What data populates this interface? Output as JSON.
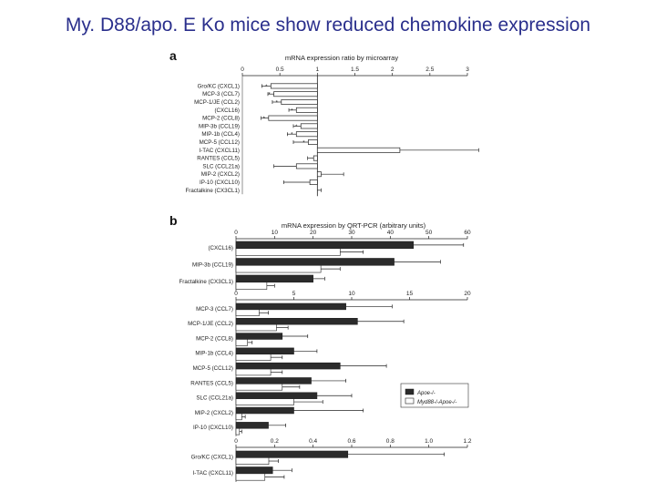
{
  "slide": {
    "title": "My. D88/apo. E Ko mice show reduced chemokine expression"
  },
  "colors": {
    "title": "#2a2f8c",
    "filled_bar": "#2b2b2b",
    "open_bar": "#ffffff",
    "axis": "#222222"
  },
  "chart_data": [
    {
      "panel": "a",
      "type": "bar",
      "orientation": "horizontal",
      "title": "mRNA expression ratio by microarray",
      "ticks": [
        "0",
        "0.5",
        "1",
        "1.5",
        "2",
        "2.5",
        "3"
      ],
      "xlim": [
        0,
        3
      ],
      "reference_line": 1,
      "categories": [
        "Gro/KC (CXCL1)",
        "MCP-3 (CCL7)",
        "MCP-1/JE (CCL2)",
        "(CXCL16)",
        "MCP-2 (CCL8)",
        "MIP-3b (CCL19)",
        "MIP-1b (CCL4)",
        "MCP-5 (CCL12)",
        "I-TAC (CXCL11)",
        "RANTES (CCL5)",
        "SLC (CCL21a)",
        "MIP-2 (CXCL2)",
        "IP-10 (CXCL10)",
        "Fractalkine (CX3CL1)"
      ],
      "series": [
        {
          "values": [
            0.38,
            0.42,
            0.52,
            0.72,
            0.35,
            0.78,
            0.72,
            0.88,
            2.1,
            0.95,
            0.72,
            1.05,
            0.9,
            1.0
          ],
          "error": [
            0.12,
            0.08,
            0.12,
            0.1,
            0.1,
            0.1,
            0.12,
            0.2,
            1.05,
            0.08,
            0.3,
            0.3,
            0.35,
            0.05
          ]
        }
      ],
      "annotations": [
        "*",
        "*",
        "*",
        "*",
        "*",
        "*",
        "*",
        "*"
      ]
    },
    {
      "panel": "b",
      "type": "bar",
      "orientation": "horizontal",
      "title": "mRNA expression by QRT-PCR (arbitrary units)",
      "subpanels": [
        {
          "ticks": [
            "0",
            "10",
            "20",
            "30",
            "40",
            "50",
            "60"
          ],
          "xlim": [
            0,
            60
          ],
          "categories": [
            "(CXCL16)",
            "MIP-3b (CCL19)",
            "Fractalkine (CX3CL1)"
          ],
          "series": [
            {
              "name": "Apoe-/-",
              "values": [
                46,
                41,
                20
              ],
              "error": [
                13,
                12,
                3
              ]
            },
            {
              "name": "Myd88-/-Apoe-/-",
              "values": [
                27,
                22,
                8
              ],
              "error": [
                6,
                5,
                2
              ]
            }
          ]
        },
        {
          "ticks": [
            "0",
            "5",
            "10",
            "15",
            "20"
          ],
          "xlim": [
            0,
            20
          ],
          "categories": [
            "MCP-3 (CCL7)",
            "MCP-1/JE (CCL2)",
            "MCP-2 (CCL8)",
            "MIP-1b (CCL4)",
            "MCP-5 (CCL12)",
            "RANTES (CCL5)",
            "SLC (CCL21a)",
            "MIP-2 (CXCL2)",
            "IP-10 (CXCL10)"
          ],
          "series": [
            {
              "name": "Apoe-/-",
              "values": [
                9.5,
                10.5,
                4,
                5,
                9,
                6.5,
                7,
                5,
                2.8
              ],
              "error": [
                4,
                4,
                2.2,
                2,
                4,
                3,
                3,
                6,
                1.5
              ]
            },
            {
              "name": "Myd88-/-Apoe-/-",
              "values": [
                2,
                3.5,
                1,
                3,
                3,
                4,
                5,
                0.5,
                0.3
              ],
              "error": [
                0.8,
                1,
                0.4,
                1,
                1,
                1.5,
                2.5,
                0.3,
                0.2
              ]
            }
          ]
        },
        {
          "ticks": [
            "0",
            "0.2",
            "0.4",
            "0.6",
            "0.8",
            "1.0",
            "1.2"
          ],
          "xlim": [
            0,
            1.2
          ],
          "categories": [
            "Gro/KC (CXCL1)",
            "I-TAC (CXCL11)"
          ],
          "series": [
            {
              "name": "Apoe-/-",
              "values": [
                0.58,
                0.19
              ],
              "error": [
                0.5,
                0.1
              ]
            },
            {
              "name": "Myd88-/-Apoe-/-",
              "values": [
                0.17,
                0.15
              ],
              "error": [
                0.05,
                0.1
              ]
            }
          ]
        }
      ],
      "legend": {
        "position": "right",
        "entries": [
          "Apoe-/-",
          "Myd88-/-Apoe-/-"
        ]
      }
    }
  ]
}
